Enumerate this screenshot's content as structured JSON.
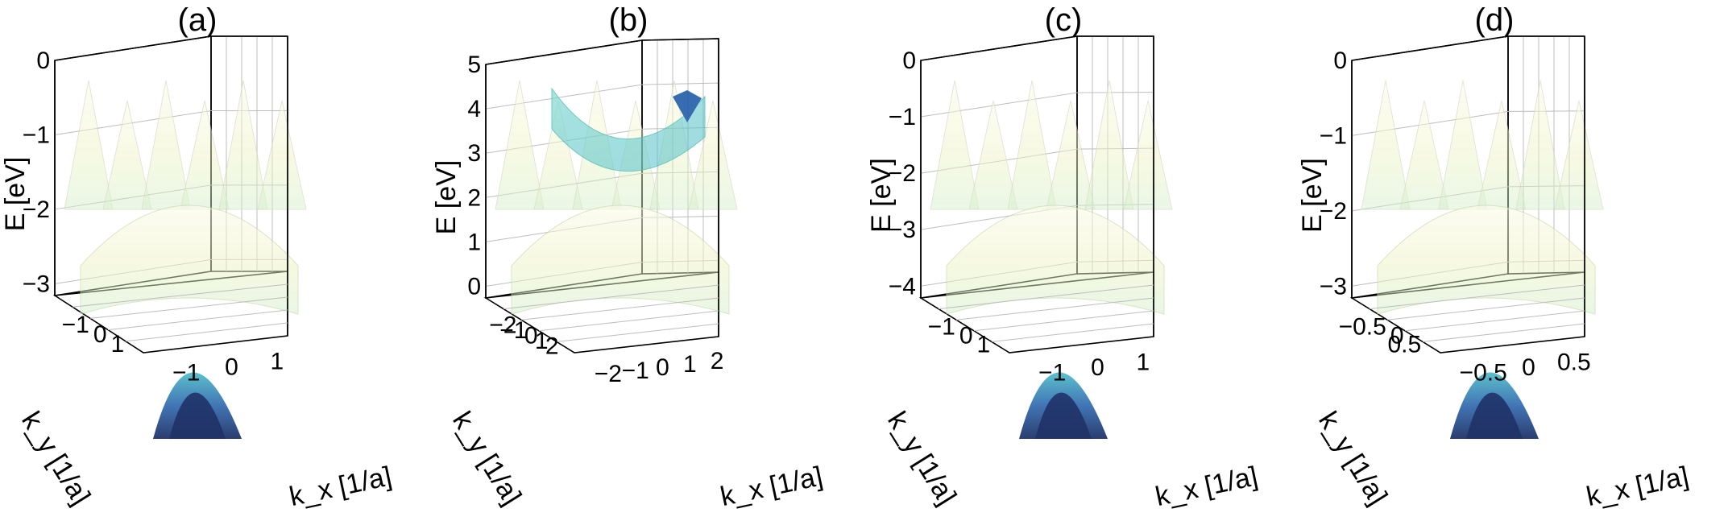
{
  "chart_data": [
    {
      "type": "surface3d",
      "panel_label": "(a)",
      "zlabel": "E [eV]",
      "xlabel": "k_x [1/a]",
      "ylabel": "k_y [1/a]",
      "zlim": [
        -3.5,
        0
      ],
      "zticks": [
        "0",
        "−1",
        "−2",
        "−3"
      ],
      "xticks": [
        "−1",
        "0",
        "1"
      ],
      "yticks": [
        "−1",
        "0",
        "1"
      ],
      "colormap": [
        "#081d58",
        "#225ea8",
        "#41b6c4",
        "#c7e9b4",
        "#ffffd9"
      ],
      "grid": true
    },
    {
      "type": "surface3d",
      "panel_label": "(b)",
      "zlabel": "E [eV]",
      "xlabel": "k_x [1/a]",
      "ylabel": "k_y [1/a]",
      "zlim": [
        0,
        5
      ],
      "zticks": [
        "5",
        "4",
        "3",
        "2",
        "1",
        "0"
      ],
      "xticks": [
        "−2",
        "−1",
        "0",
        "1",
        "2"
      ],
      "yticks": [
        "−2",
        "−1",
        "0",
        "1",
        "2"
      ],
      "colormap": [
        "#081d58",
        "#225ea8",
        "#41b6c4",
        "#c7e9b4",
        "#ffffd9"
      ],
      "grid": true
    },
    {
      "type": "surface3d",
      "panel_label": "(c)",
      "zlabel": "E [eV]",
      "xlabel": "k_x [1/a]",
      "ylabel": "k_y [1/a]",
      "zlim": [
        -4,
        0
      ],
      "zticks": [
        "0",
        "−1",
        "−2",
        "−3",
        "−4"
      ],
      "xticks": [
        "−1",
        "0",
        "1"
      ],
      "yticks": [
        "−1",
        "0",
        "1"
      ],
      "colormap": [
        "#081d58",
        "#225ea8",
        "#41b6c4",
        "#c7e9b4",
        "#ffffd9"
      ],
      "grid": true
    },
    {
      "type": "surface3d",
      "panel_label": "(d)",
      "zlabel": "E [eV]",
      "xlabel": "k_x [1/a]",
      "ylabel": "k_y [1/a]",
      "zlim": [
        -3,
        0
      ],
      "zticks": [
        "0",
        "−1",
        "−2",
        "−3"
      ],
      "xticks": [
        "−0.5",
        "0",
        "0.5"
      ],
      "yticks": [
        "−0.5",
        "0",
        "0.5"
      ],
      "colormap": [
        "#081d58",
        "#225ea8",
        "#41b6c4",
        "#c7e9b4",
        "#ffffd9"
      ],
      "grid": true
    }
  ]
}
